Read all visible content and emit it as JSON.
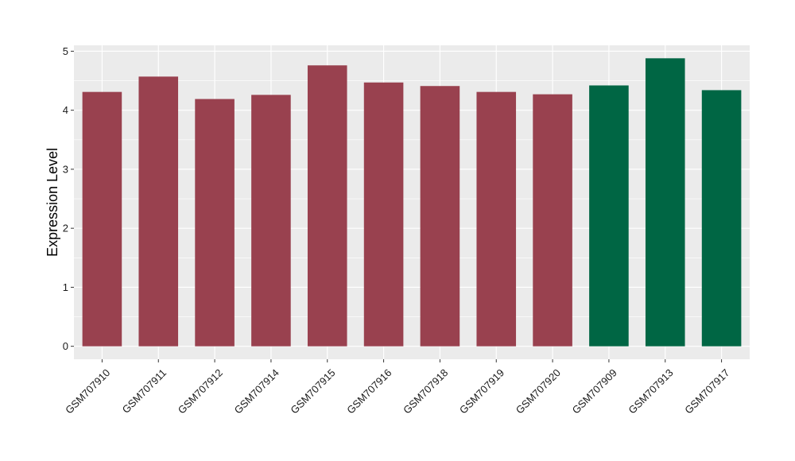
{
  "chart_data": {
    "type": "bar",
    "title": "",
    "xlabel": "",
    "ylabel": "Expression Level",
    "ylim": [
      -0.22,
      5.1
    ],
    "yticks": [
      0,
      1,
      2,
      3,
      4,
      5
    ],
    "grid": true,
    "legend": "none",
    "categories": [
      "GSM707910",
      "GSM707911",
      "GSM707912",
      "GSM707914",
      "GSM707915",
      "GSM707916",
      "GSM707918",
      "GSM707919",
      "GSM707920",
      "GSM707909",
      "GSM707913",
      "GSM707917"
    ],
    "values": [
      4.31,
      4.57,
      4.19,
      4.26,
      4.76,
      4.47,
      4.41,
      4.31,
      4.27,
      4.42,
      4.88,
      4.34
    ],
    "groups": [
      "g1",
      "g1",
      "g1",
      "g1",
      "g1",
      "g1",
      "g1",
      "g1",
      "g1",
      "g2",
      "g2",
      "g2"
    ],
    "group_colors": {
      "g1": "#99414f",
      "g2": "#006644"
    },
    "panel_color": "#ebebeb",
    "grid_color": "#ffffff"
  }
}
